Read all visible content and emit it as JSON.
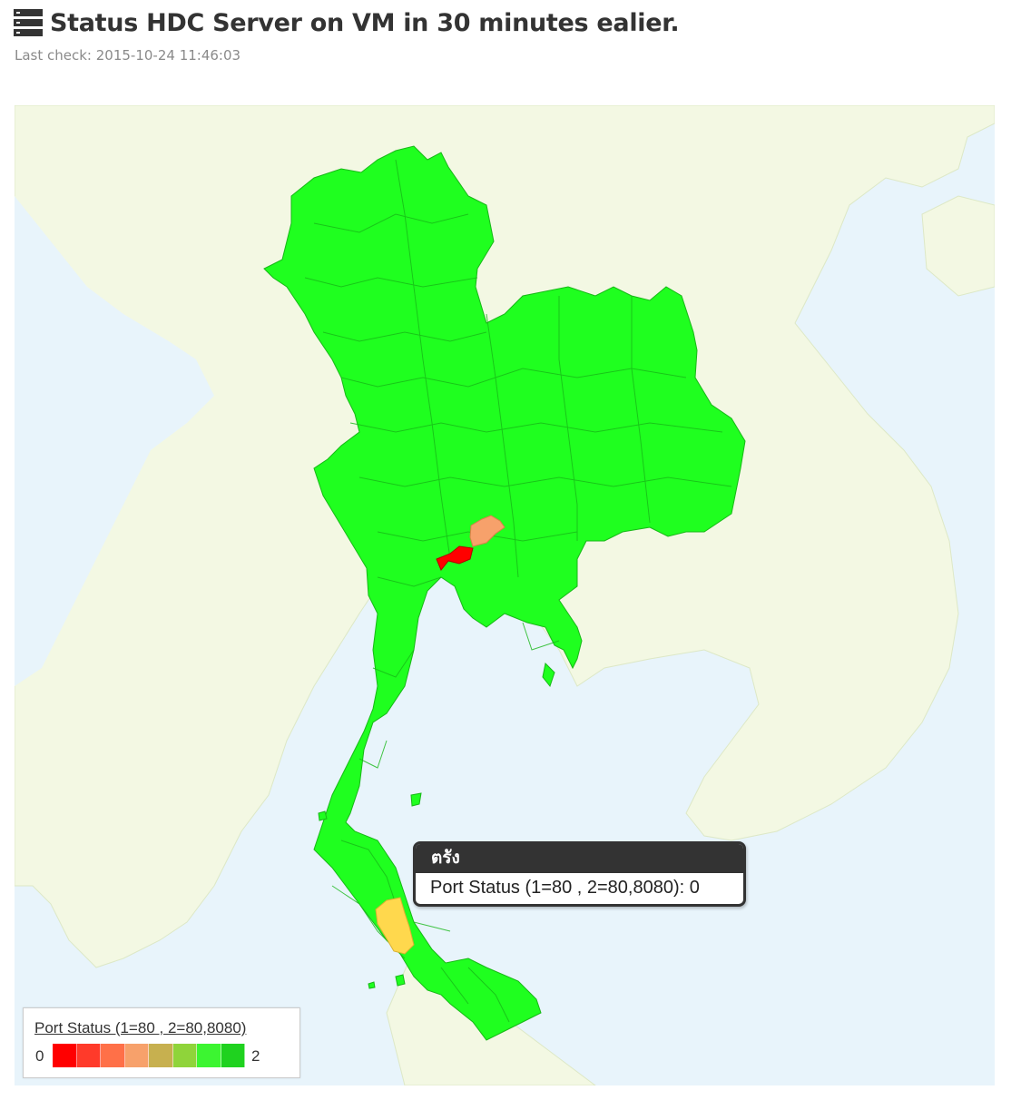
{
  "header": {
    "title": "Status HDC Server on VM in 30 minutes ealier.",
    "last_check": "Last check: 2015-10-24 11:46:03",
    "icon": "server-icon"
  },
  "map": {
    "region": "Thailand",
    "highlighted": [
      {
        "status": 0,
        "color": "#ff0000"
      },
      {
        "status": 0,
        "color": "#f7a16b"
      },
      {
        "status": 0,
        "color": "#ffd84d"
      }
    ],
    "default_color": "#1fff1f"
  },
  "tooltip": {
    "province": "ตรัง",
    "series_label": "Port Status (1=80 , 2=80,8080)",
    "value": "0",
    "text": "Port Status (1=80 , 2=80,8080): 0"
  },
  "legend": {
    "title": "Port Status (1=80 , 2=80,8080)",
    "min": "0",
    "max": "2",
    "colors": [
      "#ff0000",
      "#ff3a2a",
      "#ff7048",
      "#f7a16b",
      "#c7b04f",
      "#8fd43a",
      "#3cf531",
      "#1fd21f"
    ]
  }
}
